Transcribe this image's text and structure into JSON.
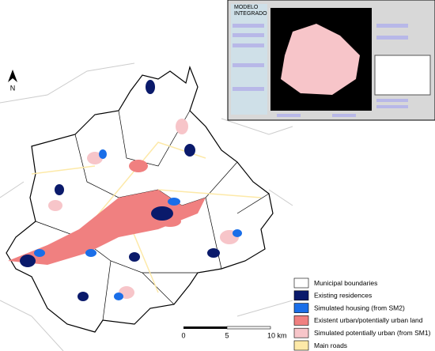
{
  "north_arrow": {
    "label": "N"
  },
  "scale_bar": {
    "labels": [
      "0",
      "5",
      "10 km"
    ]
  },
  "legend": {
    "items": [
      {
        "label": "Municipal boundaries",
        "color": "#ffffff"
      },
      {
        "label": "Existing residences",
        "color": "#0a1a6b"
      },
      {
        "label": "Simulated  housing (from SM2)",
        "color": "#1a6ee8"
      },
      {
        "label": "Existent urban/potentially urban land",
        "color": "#f08080"
      },
      {
        "label": "Simulated potentially urban (from SM1)",
        "color": "#f7c5c9"
      },
      {
        "label": "Main roads",
        "color": "#fde9a8"
      }
    ]
  },
  "inset": {
    "title_lines": [
      "MODELO",
      "INTEGRADO"
    ]
  }
}
